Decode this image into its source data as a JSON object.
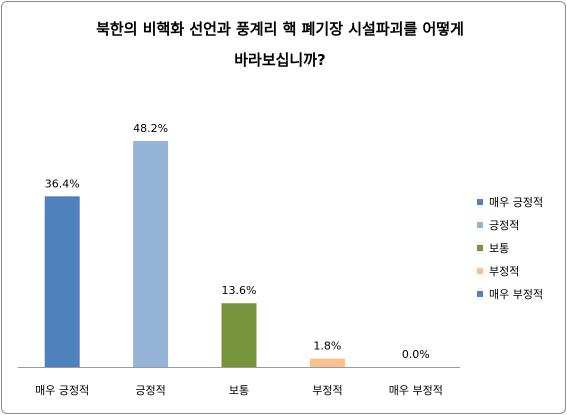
{
  "chart_data": {
    "type": "bar",
    "title_line1": "북한의 비핵화 선언과 풍계리 핵 폐기장 시설파괴를 어떻게",
    "title_line2": "바라보십니까?",
    "categories": [
      "매우 긍정적",
      "긍정적",
      "보통",
      "부정적",
      "매우 부정적"
    ],
    "values": [
      36.4,
      48.2,
      13.6,
      1.8,
      0.0
    ],
    "value_labels": [
      "36.4%",
      "48.2%",
      "13.6%",
      "1.8%",
      "0.0%"
    ],
    "colors": [
      "#4f81bd",
      "#95b3d7",
      "#77933c",
      "#fac090",
      "#4f81bd"
    ],
    "legend": {
      "position": "right",
      "entries": [
        {
          "label": "매우 긍정적",
          "color": "#4f81bd"
        },
        {
          "label": "긍정적",
          "color": "#95b3d7"
        },
        {
          "label": "보통",
          "color": "#77933c"
        },
        {
          "label": "부정적",
          "color": "#fac090"
        },
        {
          "label": "매우 부정적",
          "color": "#4f81bd"
        }
      ]
    },
    "ylim": [
      0,
      50
    ],
    "grid": false
  }
}
